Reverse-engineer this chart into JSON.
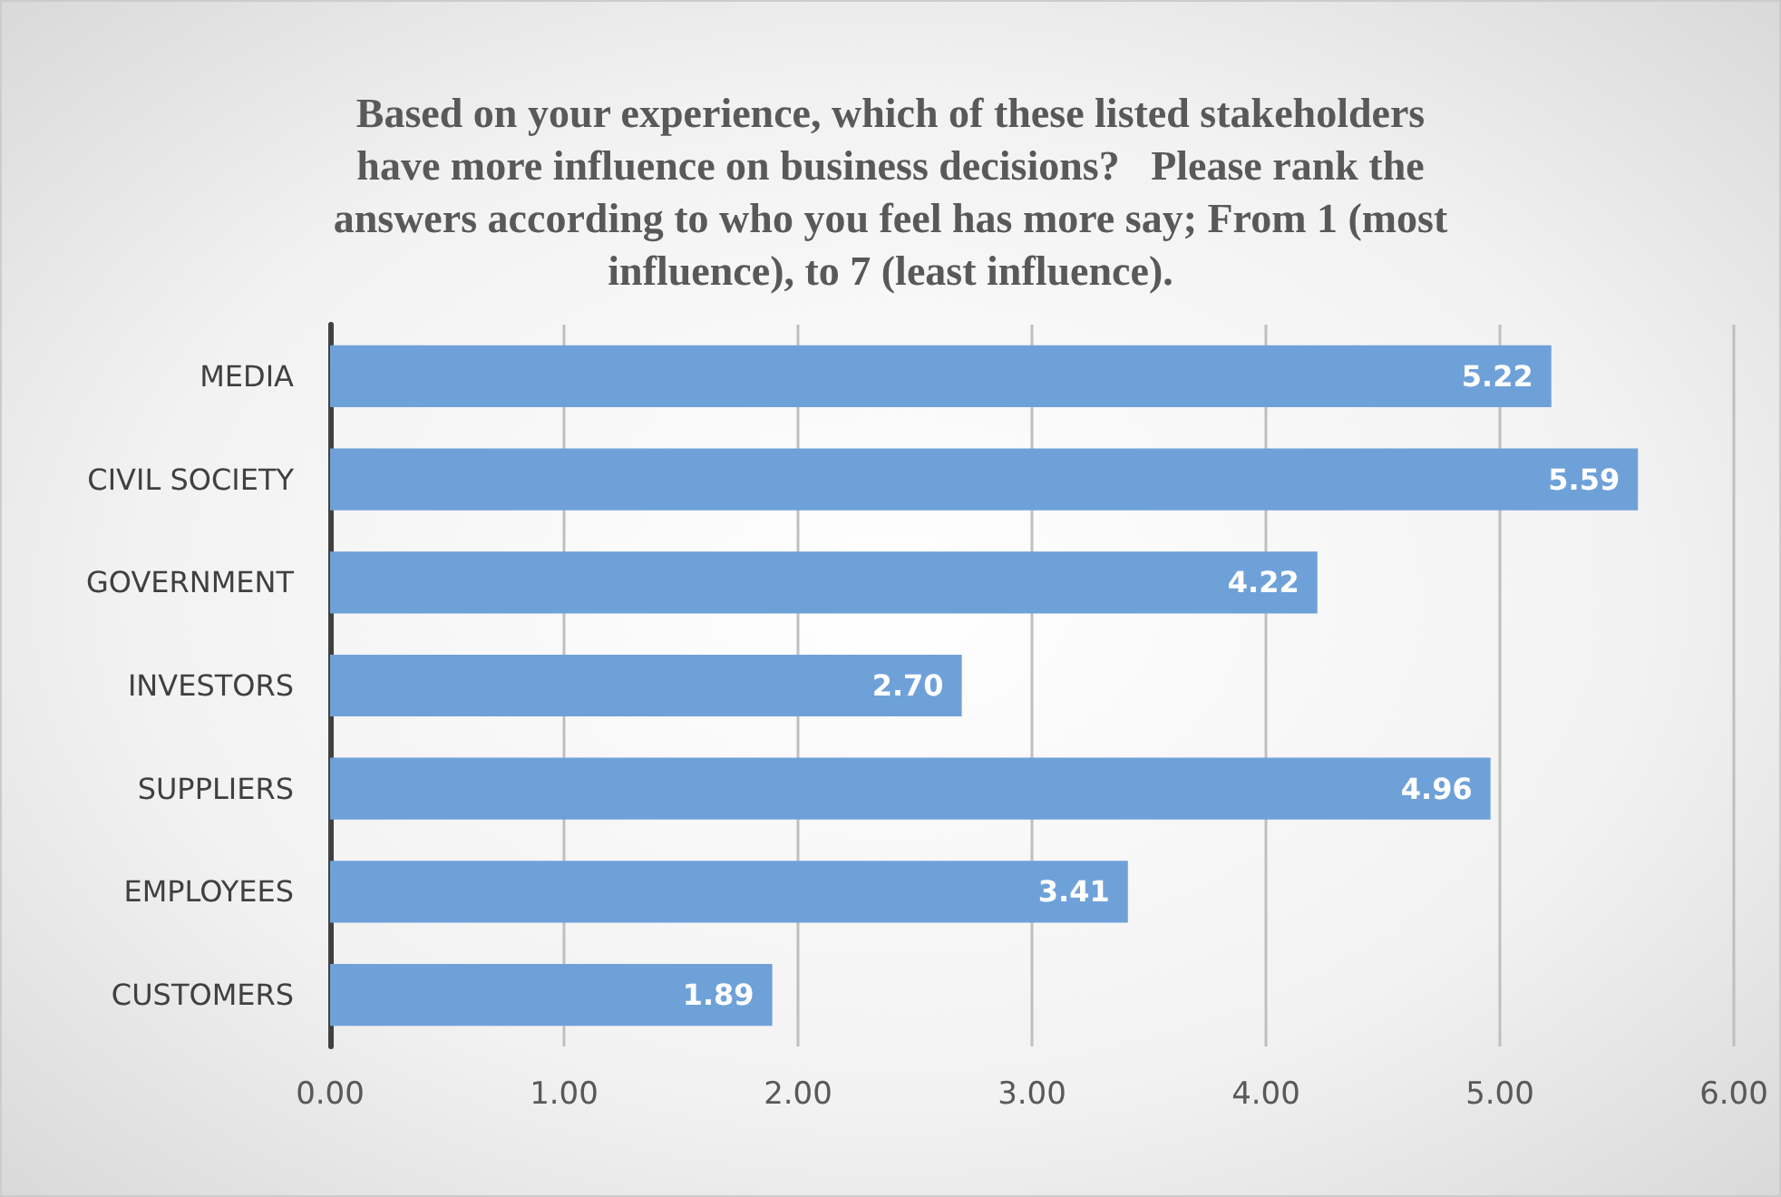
{
  "chart_data": {
    "type": "bar",
    "orientation": "horizontal",
    "title": "Based on your experience, which of these listed stakeholders\nhave more influence on business decisions?   Please rank the\nanswers according to who you feel has more say; From 1 (most\ninfluence), to 7 (least influence).",
    "categories": [
      "MEDIA",
      "CIVIL SOCIETY",
      "GOVERNMENT",
      "INVESTORS",
      "SUPPLIERS",
      "EMPLOYEES",
      "CUSTOMERS"
    ],
    "values": [
      5.22,
      5.59,
      4.22,
      2.7,
      4.96,
      3.41,
      1.89
    ],
    "value_labels": [
      "5.22",
      "5.59",
      "4.22",
      "2.70",
      "4.96",
      "3.41",
      "1.89"
    ],
    "color": "#6fa1d9",
    "xlim": [
      0,
      6
    ],
    "xticks": [
      {
        "value": 0,
        "label": "0.00"
      },
      {
        "value": 1,
        "label": "1.00"
      },
      {
        "value": 2,
        "label": "2.00"
      },
      {
        "value": 3,
        "label": "3.00"
      },
      {
        "value": 4,
        "label": "4.00"
      },
      {
        "value": 5,
        "label": "5.00"
      },
      {
        "value": 6,
        "label": "6.00"
      }
    ],
    "grid": "x"
  }
}
